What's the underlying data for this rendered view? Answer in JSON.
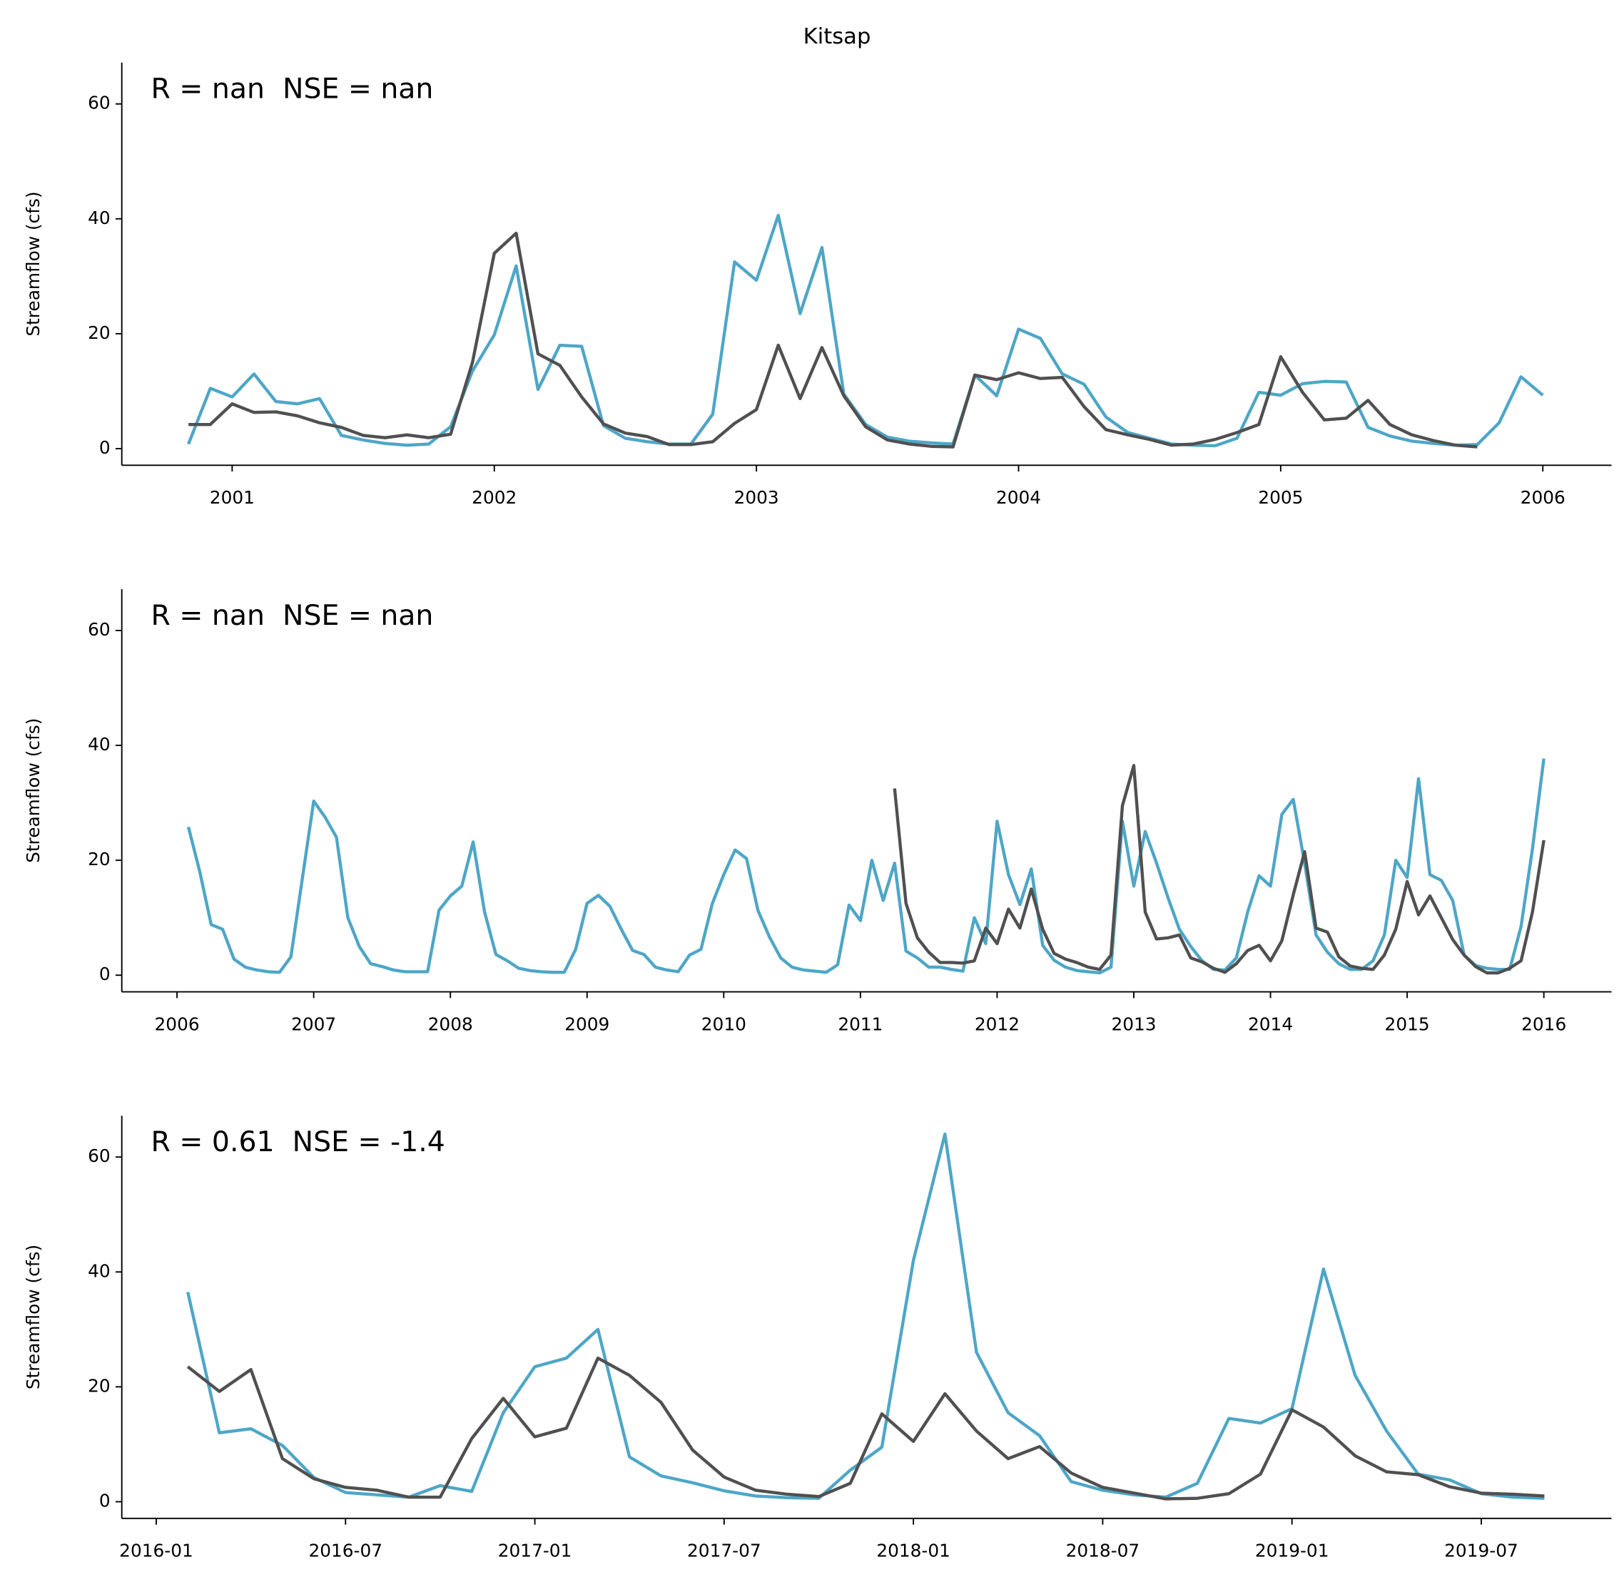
{
  "title": "Kitsap",
  "chart_data": [
    {
      "type": "line",
      "annotation": "R = nan  NSE = nan",
      "ylabel": "Streamflow (cfs)",
      "x": [
        "2000-11",
        "2000-12",
        "2001-01",
        "2001-02",
        "2001-03",
        "2001-04",
        "2001-05",
        "2001-06",
        "2001-07",
        "2001-08",
        "2001-09",
        "2001-10",
        "2001-11",
        "2001-12",
        "2002-01",
        "2002-02",
        "2002-03",
        "2002-04",
        "2002-05",
        "2002-06",
        "2002-07",
        "2002-08",
        "2002-09",
        "2002-10",
        "2002-11",
        "2002-12",
        "2003-01",
        "2003-02",
        "2003-03",
        "2003-04",
        "2003-05",
        "2003-06",
        "2003-07",
        "2003-08",
        "2003-09",
        "2003-10",
        "2003-11",
        "2003-12",
        "2004-01",
        "2004-02",
        "2004-03",
        "2004-04",
        "2004-05",
        "2004-06",
        "2004-07",
        "2004-08",
        "2004-09",
        "2004-10",
        "2004-11",
        "2004-12",
        "2005-01",
        "2005-02",
        "2005-03",
        "2005-04",
        "2005-05",
        "2005-06",
        "2005-07",
        "2005-08",
        "2005-09",
        "2005-10",
        "2005-11",
        "2005-12",
        "2006-01"
      ],
      "series": [
        {
          "color": "#4ea6c7",
          "values": [
            0.8,
            10.5,
            9,
            13,
            8.2,
            7.8,
            8.7,
            2.3,
            1.5,
            0.9,
            0.6,
            0.8,
            3.8,
            13.5,
            19.8,
            31.8,
            10.3,
            18,
            17.8,
            4,
            1.8,
            1.2,
            0.8,
            0.8,
            6,
            32.5,
            29.3,
            40.6,
            23.5,
            35,
            9.5,
            4.2,
            2,
            1.3,
            1,
            0.8,
            12.8,
            9.2,
            20.8,
            19.2,
            13,
            11.2,
            5.5,
            2.8,
            1.8,
            0.8,
            0.6,
            0.5,
            1.8,
            9.8,
            9.3,
            11.3,
            11.7,
            11.6,
            3.7,
            2.2,
            1.3,
            0.9,
            0.6,
            0.7,
            4.5,
            12.5,
            9.3
          ]
        },
        {
          "color": "#505050",
          "values": [
            4.2,
            4.2,
            7.8,
            6.3,
            6.4,
            5.7,
            4.5,
            3.7,
            2.3,
            1.9,
            2.4,
            1.9,
            2.5,
            15,
            34,
            37.5,
            16.5,
            14.5,
            9,
            4.3,
            2.7,
            2.1,
            0.7,
            0.7,
            1.2,
            4.4,
            6.8,
            18,
            8.7,
            17.6,
            9.2,
            3.8,
            1.5,
            0.8,
            0.4,
            0.3,
            12.8,
            12,
            13.2,
            12.2,
            12.4,
            7.3,
            3.3,
            2.4,
            1.6,
            0.6,
            0.8,
            1.6,
            2.8,
            4.2,
            16,
            9.8,
            5,
            5.3,
            8.4,
            4.2,
            2.4,
            1.4,
            0.6,
            0.3,
            null,
            null,
            null
          ]
        }
      ],
      "xlim": [
        2000.579,
        2006.262
      ],
      "xticks": [
        2001,
        2002,
        2003,
        2004,
        2005,
        2006
      ],
      "ylim": [
        -2.9,
        67.2
      ],
      "yticks": [
        0,
        20,
        40,
        60
      ]
    },
    {
      "type": "line",
      "annotation": "R = nan  NSE = nan",
      "ylabel": "Streamflow (cfs)",
      "x": [
        "2006-02",
        "2006-03",
        "2006-04",
        "2006-05",
        "2006-06",
        "2006-07",
        "2006-08",
        "2006-09",
        "2006-10",
        "2006-11",
        "2006-12",
        "2007-01",
        "2007-02",
        "2007-03",
        "2007-04",
        "2007-05",
        "2007-06",
        "2007-07",
        "2007-08",
        "2007-09",
        "2007-10",
        "2007-11",
        "2007-12",
        "2008-01",
        "2008-02",
        "2008-03",
        "2008-04",
        "2008-05",
        "2008-06",
        "2008-07",
        "2008-08",
        "2008-09",
        "2008-10",
        "2008-11",
        "2008-12",
        "2009-01",
        "2009-02",
        "2009-03",
        "2009-04",
        "2009-05",
        "2009-06",
        "2009-07",
        "2009-08",
        "2009-09",
        "2009-10",
        "2009-11",
        "2009-12",
        "2010-01",
        "2010-02",
        "2010-03",
        "2010-04",
        "2010-05",
        "2010-06",
        "2010-07",
        "2010-08",
        "2010-09",
        "2010-10",
        "2010-11",
        "2010-12",
        "2011-01",
        "2011-02",
        "2011-03",
        "2011-04",
        "2011-05",
        "2011-06",
        "2011-07",
        "2011-08",
        "2011-09",
        "2011-10",
        "2011-11",
        "2011-12",
        "2012-01",
        "2012-02",
        "2012-03",
        "2012-04",
        "2012-05",
        "2012-06",
        "2012-07",
        "2012-08",
        "2012-09",
        "2012-10",
        "2012-11",
        "2012-12",
        "2013-01",
        "2013-02",
        "2013-03",
        "2013-04",
        "2013-05",
        "2013-06",
        "2013-07",
        "2013-08",
        "2013-09",
        "2013-10",
        "2013-11",
        "2013-12",
        "2014-01",
        "2014-02",
        "2014-03",
        "2014-04",
        "2014-05",
        "2014-06",
        "2014-07",
        "2014-08",
        "2014-09",
        "2014-10",
        "2014-11",
        "2014-12",
        "2015-01",
        "2015-02",
        "2015-03",
        "2015-04",
        "2015-05",
        "2015-06",
        "2015-07",
        "2015-08",
        "2015-09",
        "2015-10",
        "2015-11",
        "2015-12",
        "2016-01"
      ],
      "series": [
        {
          "color": "#4ea6c7",
          "values": [
            25.8,
            18,
            8.8,
            8,
            2.8,
            1.4,
            0.9,
            0.6,
            0.5,
            3.2,
            16.8,
            30.3,
            27.5,
            24,
            10,
            5,
            2,
            1.5,
            0.9,
            0.6,
            0.6,
            0.6,
            11.3,
            13.8,
            15.5,
            23.2,
            11,
            3.6,
            2.5,
            1.2,
            0.8,
            0.6,
            0.5,
            0.5,
            4.5,
            12.5,
            13.9,
            12,
            8,
            4.3,
            3.6,
            1.4,
            0.9,
            0.6,
            3.5,
            4.5,
            12.5,
            17.5,
            21.8,
            20.3,
            11.3,
            6.7,
            3,
            1.4,
            0.9,
            0.7,
            0.5,
            1.8,
            12.2,
            9.5,
            20,
            13,
            19.5,
            4.2,
            3,
            1.4,
            1.4,
            1,
            0.7,
            10,
            5.5,
            26.8,
            17.5,
            12.3,
            18.5,
            5.2,
            2.6,
            1.4,
            0.8,
            0.6,
            0.4,
            1.4,
            26.8,
            15.5,
            25,
            19.5,
            13.5,
            8,
            5,
            2.5,
            1,
            0.9,
            3,
            11,
            17.3,
            15.5,
            28,
            30.6,
            19.5,
            7,
            4,
            2,
            1,
            1,
            2.5,
            7,
            20,
            17,
            34.2,
            17.5,
            16.5,
            13,
            3.5,
            1.7,
            1.2,
            1,
            1,
            8.5,
            22,
            37.7
          ]
        },
        {
          "color": "#505050",
          "values": [
            null,
            null,
            null,
            null,
            null,
            null,
            null,
            null,
            null,
            null,
            null,
            null,
            null,
            null,
            null,
            null,
            null,
            null,
            null,
            null,
            null,
            null,
            null,
            null,
            null,
            null,
            null,
            null,
            null,
            null,
            null,
            null,
            null,
            null,
            null,
            null,
            null,
            null,
            null,
            null,
            null,
            null,
            null,
            null,
            null,
            null,
            null,
            null,
            null,
            null,
            null,
            null,
            null,
            null,
            null,
            null,
            null,
            null,
            null,
            null,
            null,
            null,
            32.5,
            12.5,
            6.5,
            4,
            2.2,
            2.2,
            2.1,
            2.5,
            8.2,
            5.5,
            11.5,
            8.2,
            15,
            8,
            3.8,
            2.8,
            2.2,
            1.4,
            1,
            3.5,
            29.5,
            36.5,
            11,
            6.3,
            6.5,
            7,
            3,
            2.3,
            1.2,
            0.5,
            2,
            4.3,
            5.2,
            2.5,
            6,
            14,
            21.5,
            8.2,
            7.5,
            3.2,
            1.6,
            1.2,
            1,
            3.5,
            8,
            16.3,
            10.5,
            13.8,
            10,
            6.2,
            3.5,
            1.5,
            0.4,
            0.4,
            1.2,
            2.5,
            11,
            23.5
          ]
        }
      ],
      "xlim": [
        2005.596,
        2016.495
      ],
      "xticks": [
        2006,
        2007,
        2008,
        2009,
        2010,
        2011,
        2012,
        2013,
        2014,
        2015,
        2016
      ],
      "ylim": [
        -2.9,
        67.2
      ],
      "yticks": [
        0,
        20,
        40,
        60
      ]
    },
    {
      "type": "line",
      "annotation": "R = 0.61  NSE = -1.4",
      "ylabel": "Streamflow (cfs)",
      "x": [
        "2016-02",
        "2016-03",
        "2016-04",
        "2016-05",
        "2016-06",
        "2016-07",
        "2016-08",
        "2016-09",
        "2016-10",
        "2016-11",
        "2016-12",
        "2017-01",
        "2017-02",
        "2017-03",
        "2017-04",
        "2017-05",
        "2017-06",
        "2017-07",
        "2017-08",
        "2017-09",
        "2017-10",
        "2017-11",
        "2017-12",
        "2018-01",
        "2018-02",
        "2018-03",
        "2018-04",
        "2018-05",
        "2018-06",
        "2018-07",
        "2018-08",
        "2018-09",
        "2018-10",
        "2018-11",
        "2018-12",
        "2019-01",
        "2019-02",
        "2019-03",
        "2019-04",
        "2019-05",
        "2019-06",
        "2019-07",
        "2019-08",
        "2019-09"
      ],
      "series": [
        {
          "color": "#4ea6c7",
          "values": [
            36.5,
            12,
            12.7,
            9.8,
            4.2,
            1.6,
            1.2,
            0.8,
            2.8,
            1.8,
            15.5,
            23.5,
            25,
            30,
            7.8,
            4.5,
            3.3,
            1.9,
            1,
            0.7,
            0.6,
            5.5,
            9.5,
            42,
            64,
            26,
            15.5,
            11.5,
            3.5,
            2,
            1.2,
            0.8,
            3.2,
            14.5,
            13.7,
            16.2,
            40.5,
            22,
            12.3,
            4.8,
            3.8,
            1.4,
            0.8,
            0.6
          ]
        },
        {
          "color": "#505050",
          "values": [
            23.5,
            19.2,
            23,
            7.5,
            4,
            2.5,
            2,
            0.8,
            0.8,
            11,
            18,
            11.3,
            12.8,
            25,
            22,
            17.3,
            9,
            4.3,
            2,
            1.3,
            0.9,
            3.2,
            15.3,
            10.5,
            18.8,
            12.3,
            7.5,
            9.6,
            5,
            2.5,
            1.5,
            0.5,
            0.6,
            1.4,
            4.8,
            16,
            13,
            8,
            5.2,
            4.7,
            2.6,
            1.5,
            1.3,
            1
          ]
        }
      ],
      "xlim": [
        2015.909,
        2019.844
      ],
      "xticks": [
        "2016-01",
        "2016-07",
        "2017-01",
        "2017-07",
        "2018-01",
        "2018-07",
        "2019-01",
        "2019-07"
      ],
      "ylim": [
        -2.9,
        67.2
      ],
      "yticks": [
        0,
        20,
        40,
        60
      ]
    }
  ]
}
